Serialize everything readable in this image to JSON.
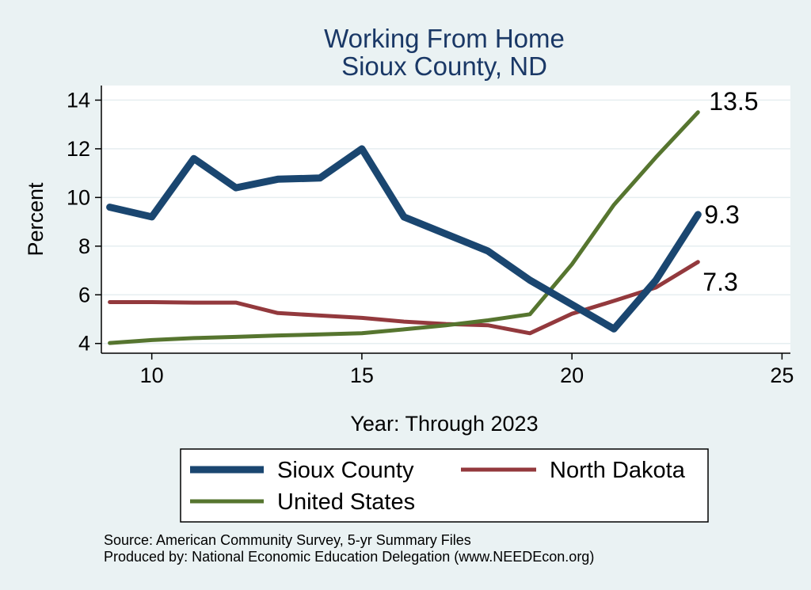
{
  "chart_data": {
    "type": "line",
    "title": [
      "Working From Home",
      "Sioux County, ND"
    ],
    "xlabel": "Year: Through 2023",
    "ylabel": "Percent",
    "xlim": [
      8.8,
      25.2
    ],
    "ylim": [
      3.6,
      14.6
    ],
    "xticks": [
      10,
      15,
      20,
      25
    ],
    "yticks": [
      4,
      6,
      8,
      10,
      12,
      14
    ],
    "grid": true,
    "legend_position": "bottom",
    "series": [
      {
        "name": "Sioux County",
        "color": "#1a4670",
        "width": 9,
        "x": [
          9,
          10,
          11,
          12,
          13,
          14,
          15,
          16,
          17,
          18,
          19,
          20,
          21,
          22,
          23
        ],
        "y": [
          9.6,
          9.2,
          11.6,
          10.4,
          10.75,
          10.8,
          12.0,
          9.2,
          8.5,
          7.8,
          6.6,
          5.6,
          4.6,
          6.6,
          9.3
        ],
        "end_label": "9.3"
      },
      {
        "name": "North Dakota",
        "color": "#93393d",
        "width": 5,
        "x": [
          9,
          10,
          11,
          12,
          13,
          14,
          15,
          16,
          17,
          18,
          19,
          20,
          21,
          22,
          23
        ],
        "y": [
          5.7,
          5.7,
          5.68,
          5.68,
          5.25,
          5.15,
          5.05,
          4.9,
          4.8,
          4.75,
          4.42,
          5.22,
          5.75,
          6.3,
          7.35
        ],
        "end_label": "7.3"
      },
      {
        "name": "United States",
        "color": "#56752f",
        "width": 5,
        "x": [
          9,
          10,
          11,
          12,
          13,
          14,
          15,
          16,
          17,
          18,
          19,
          20,
          21,
          22,
          23
        ],
        "y": [
          4.02,
          4.14,
          4.22,
          4.27,
          4.33,
          4.37,
          4.42,
          4.58,
          4.75,
          4.95,
          5.2,
          7.25,
          9.7,
          11.65,
          13.5
        ],
        "end_label": "13.5"
      }
    ],
    "legend_order": [
      0,
      1,
      2
    ]
  },
  "notes": {
    "source": "Source: American Community Survey, 5-yr Summary Files",
    "produced_by": "Produced by: National Economic Education Delegation (www.NEEDEcon.org)"
  }
}
